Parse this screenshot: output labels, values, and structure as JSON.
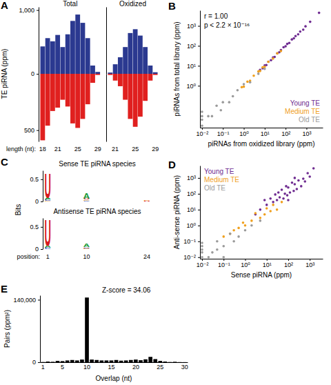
{
  "chart_data": [
    {
      "type": "bar",
      "panel": "A",
      "title": "Total",
      "y_label": "TE piRNA (ppm)",
      "x_label": "length (nt):",
      "categories": [
        "18",
        null,
        null,
        "21",
        null,
        null,
        null,
        "25",
        null,
        null,
        null,
        "29"
      ],
      "series": [
        {
          "color": "#2b3990",
          "values": [
            430,
            560,
            510,
            610,
            420,
            620,
            830,
            930,
            800,
            560,
            130,
            30
          ]
        },
        {
          "color": "#e0201f",
          "axis": "y2",
          "values": [
            590,
            460,
            330,
            300,
            230,
            290,
            440,
            480,
            400,
            270,
            80,
            10
          ]
        }
      ],
      "ylim": [
        0,
        1050
      ],
      "yticks": [
        {
          "value": 1000,
          "label": "1,000"
        },
        0
      ],
      "y2lim": [
        0,
        600
      ],
      "y2ticks": [
        500
      ]
    },
    {
      "type": "bar",
      "title": "Oxidized",
      "tick_labels": "x",
      "categories": [
        null,
        "21",
        null,
        null,
        null,
        "25",
        null,
        null,
        null,
        "29"
      ],
      "series": [
        {
          "color": "#2b3990",
          "values": [
            20,
            150,
            260,
            420,
            640,
            700,
            600,
            420,
            130,
            25
          ]
        },
        {
          "color": "#e0201f",
          "axis": "y2",
          "values": [
            10,
            60,
            110,
            230,
            400,
            470,
            380,
            240,
            60,
            10
          ]
        }
      ],
      "ylim": [
        0,
        1050
      ],
      "y2lim": [
        0,
        600
      ]
    },
    {
      "type": "scatter",
      "panel": "B",
      "log": true,
      "x_label": "piRNAs from oxidized library (ppm)",
      "y_label": "piRNAs from total library (ppm)",
      "annotations": [
        "r = 1.00",
        "p < 2.2 × 10⁻¹⁶"
      ],
      "legend": "bottom-right",
      "xlim": [
        0.008,
        6000
      ],
      "ylim": [
        0.008,
        6000
      ],
      "xticks": [
        {
          "value": 0.01,
          "label": "10⁻²"
        },
        {
          "value": 0.1,
          "label": "10⁻¹"
        },
        {
          "value": 1,
          "label": "10⁰"
        },
        {
          "value": 10,
          "label": "10¹"
        },
        {
          "value": 100,
          "label": "10²"
        },
        {
          "value": 1000,
          "label": "10³"
        }
      ],
      "yticks": [
        {
          "value": 1,
          "label": "10⁰"
        },
        {
          "value": 10,
          "label": "10¹"
        },
        {
          "value": 100,
          "label": "10²"
        },
        {
          "value": 1000,
          "label": "10³"
        }
      ],
      "series": [
        {
          "name": "Young TE",
          "color": "#6f2c91",
          "x": [
            4000,
            1500,
            900,
            700,
            500,
            400,
            300,
            250,
            200,
            150,
            120,
            100,
            80,
            60,
            50,
            40,
            30,
            25,
            20,
            15,
            12,
            10,
            8,
            6
          ],
          "values": [
            4500,
            1600,
            950,
            650,
            520,
            380,
            310,
            240,
            210,
            140,
            125,
            95,
            85,
            62,
            48,
            42,
            28,
            26,
            19,
            16,
            11,
            10.5,
            7.5,
            6.2
          ]
        },
        {
          "name": "Medium TE",
          "color": "#f0a01e",
          "x": [
            60,
            40,
            25,
            15,
            10,
            8,
            6,
            5,
            3,
            2,
            1.5,
            1,
            0.8
          ],
          "values": [
            55,
            42,
            23,
            16,
            9,
            8.5,
            5.5,
            5.2,
            3.2,
            1.8,
            1.6,
            0.9,
            0.85
          ]
        },
        {
          "name": "Old TE",
          "color": "#9a9a9a",
          "x": [
            10,
            5,
            2,
            1,
            0.5,
            0.3,
            0.2,
            0.1,
            0.08,
            0.05,
            0.03,
            0.02,
            0.01,
            0.01,
            0.01,
            0.01
          ],
          "values": [
            7,
            4,
            1.5,
            1.2,
            0.6,
            0.3,
            0.15,
            0.15,
            0.06,
            0.1,
            0.03,
            0.03,
            0.01,
            0.02,
            0.03,
            0.05
          ]
        }
      ]
    },
    {
      "type": "logo",
      "panel": "C",
      "y_label": "Bits",
      "x_label": "position:",
      "categories": [
        "1",
        null,
        null,
        null,
        null,
        null,
        null,
        null,
        null,
        "10",
        null,
        null,
        null,
        null,
        null,
        null,
        null,
        null,
        null,
        null,
        null,
        null,
        null,
        "24"
      ],
      "ylim": [
        0,
        0.7
      ],
      "yticks": [
        0,
        0.5
      ],
      "logos": [
        {
          "title": "Sense TE piRNA species",
          "series": [
            {
              "name": "A",
              "color": "#1a9a3a",
              "values": [
                0.04,
                0,
                0,
                0,
                0,
                0,
                0,
                0,
                0,
                0.12,
                0,
                0,
                0,
                0,
                0,
                0,
                0,
                0,
                0,
                0,
                0,
                0,
                0,
                0
              ]
            },
            {
              "name": "C",
              "color": "#1f4fbf",
              "values": [
                0.03,
                0,
                0,
                0,
                0,
                0,
                0,
                0,
                0,
                0.02,
                0,
                0,
                0,
                0,
                0,
                0,
                0,
                0,
                0,
                0,
                0,
                0,
                0,
                0
              ]
            },
            {
              "name": "G",
              "color": "#f0a01e",
              "values": [
                0.01,
                0,
                0,
                0,
                0,
                0,
                0,
                0,
                0,
                0.02,
                0,
                0,
                0,
                0,
                0,
                0,
                0,
                0,
                0,
                0,
                0,
                0,
                0,
                0.02
              ]
            },
            {
              "name": "U",
              "color": "#d7191c",
              "values": [
                0.55,
                0,
                0,
                0,
                0,
                0,
                0,
                0,
                0,
                0.03,
                0,
                0,
                0,
                0,
                0,
                0,
                0,
                0,
                0,
                0,
                0,
                0,
                0,
                0.01
              ]
            }
          ]
        },
        {
          "title": "Antisense TE piRNA species",
          "series": [
            {
              "name": "A",
              "color": "#1a9a3a",
              "values": [
                0.05,
                0,
                0,
                0,
                0,
                0,
                0,
                0,
                0,
                0.08,
                0,
                0,
                0,
                0,
                0,
                0,
                0,
                0,
                0,
                0,
                0,
                0,
                0,
                0
              ]
            },
            {
              "name": "C",
              "color": "#1f4fbf",
              "values": [
                0.03,
                0,
                0,
                0,
                0,
                0,
                0,
                0,
                0,
                0.02,
                0,
                0,
                0,
                0,
                0,
                0,
                0,
                0,
                0,
                0,
                0,
                0,
                0,
                0
              ]
            },
            {
              "name": "G",
              "color": "#f0a01e",
              "values": [
                0,
                0,
                0,
                0,
                0,
                0,
                0,
                0,
                0,
                0.01,
                0,
                0,
                0,
                0,
                0,
                0,
                0,
                0,
                0,
                0,
                0,
                0,
                0,
                0
              ]
            },
            {
              "name": "U",
              "color": "#d7191c",
              "values": [
                0.6,
                0,
                0,
                0,
                0,
                0,
                0,
                0,
                0,
                0.01,
                0,
                0,
                0,
                0,
                0,
                0,
                0,
                0,
                0,
                0,
                0,
                0,
                0,
                0
              ]
            }
          ]
        }
      ]
    },
    {
      "type": "scatter",
      "panel": "D",
      "log": true,
      "x_label": "Sense piRNA (ppm)",
      "y_label": "Anti-sense piRNA (ppm)",
      "legend": "top-left",
      "xlim": [
        0.008,
        4000
      ],
      "ylim": [
        0.008,
        6000
      ],
      "xticks": [
        {
          "value": 0.01,
          "label": "10⁻²"
        },
        {
          "value": 0.1,
          "label": "10⁻¹"
        },
        {
          "value": 1,
          "label": "10⁰"
        },
        {
          "value": 10,
          "label": "10¹"
        },
        {
          "value": 100,
          "label": "10²"
        },
        {
          "value": 1000,
          "label": "10³"
        }
      ],
      "yticks": [
        {
          "value": 0.01,
          "label": "10⁻²"
        },
        {
          "value": 0.1,
          "label": "10⁻¹"
        },
        {
          "value": 1,
          "label": "10⁰"
        },
        {
          "value": 10,
          "label": "10¹"
        },
        {
          "value": 100,
          "label": "10²"
        },
        {
          "value": 1000,
          "label": "10³"
        }
      ],
      "series": [
        {
          "name": "Young TE",
          "color": "#6f2c91",
          "x": [
            1500,
            1000,
            800,
            600,
            500,
            400,
            300,
            250,
            200,
            180,
            150,
            120,
            100,
            90,
            80,
            70,
            60,
            50,
            40,
            35,
            30,
            25,
            20,
            15,
            10,
            8,
            5,
            3,
            200,
            100
          ],
          "values": [
            4000,
            1200,
            2000,
            600,
            900,
            300,
            700,
            200,
            400,
            150,
            500,
            120,
            250,
            80,
            300,
            100,
            50,
            180,
            60,
            120,
            40,
            90,
            30,
            50,
            20,
            40,
            10,
            5,
            1000,
            40
          ]
        },
        {
          "name": "Medium TE",
          "color": "#f0a01e",
          "x": [
            50,
            30,
            20,
            15,
            10,
            8,
            5,
            3,
            2,
            1,
            0.8,
            0.5,
            0.3,
            0.2,
            0.1
          ],
          "values": [
            30,
            10,
            20,
            8,
            12,
            5,
            3,
            6,
            2,
            1,
            1.5,
            0.7,
            0.5,
            0.3,
            0.2
          ]
        },
        {
          "name": "Old TE",
          "color": "#9a9a9a",
          "x": [
            5,
            2,
            1,
            0.5,
            0.3,
            0.2,
            0.1,
            0.05,
            0.03,
            0.02,
            0.01,
            0.01,
            0.01,
            0.01,
            0.01,
            0.05,
            0.1
          ],
          "values": [
            2,
            1,
            0.5,
            0.2,
            0.1,
            0.3,
            0.05,
            0.03,
            0.02,
            0.01,
            0.01,
            0.02,
            0.03,
            0.05,
            0.08,
            0.1,
            0.01
          ]
        }
      ]
    },
    {
      "type": "bar",
      "panel": "E",
      "annotations": [
        "Z-score = 34.06"
      ],
      "x_label": "Overlap (nt)",
      "y_label": "Pairs (ppm²)",
      "color": "#000000",
      "categories": [
        "1",
        null,
        null,
        null,
        "5",
        null,
        null,
        null,
        null,
        "10",
        null,
        null,
        null,
        null,
        "15",
        null,
        null,
        null,
        null,
        "20",
        null,
        null,
        null,
        null,
        "25",
        null,
        null,
        null,
        null,
        "30"
      ],
      "values": [
        500,
        1500,
        1000,
        3000,
        2500,
        4000,
        5000,
        4000,
        6000,
        145000,
        6000,
        5000,
        4000,
        4000,
        4000,
        5000,
        3500,
        4000,
        5000,
        6000,
        4500,
        6500,
        12000,
        7000,
        3000,
        1500,
        500,
        1000,
        300,
        200
      ],
      "ylim": [
        0,
        150000
      ],
      "yticks": [
        0,
        {
          "value": 140000,
          "label": "140,000"
        }
      ]
    }
  ]
}
